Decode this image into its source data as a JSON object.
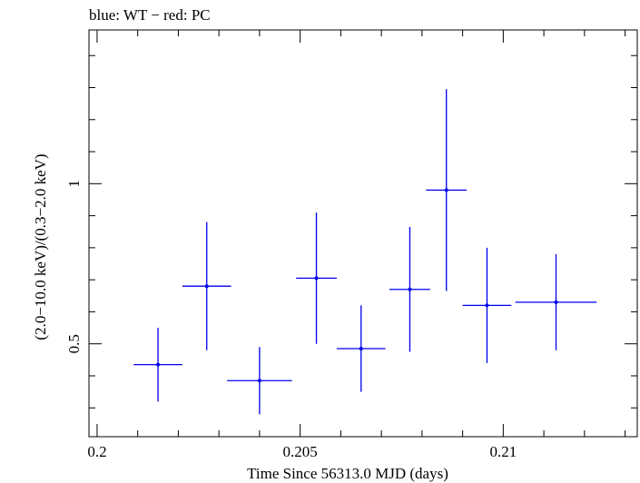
{
  "chart_data": {
    "type": "scatter",
    "title": "blue: WT − red: PC",
    "xlabel": "Time Since 56313.0 MJD (days)",
    "ylabel": "(2.0−10.0 keV)/(0.3−2.0 keV)",
    "xlim": [
      0.1998,
      0.2133
    ],
    "ylim": [
      0.21,
      1.48
    ],
    "x_major_ticks": [
      0.2,
      0.205,
      0.21
    ],
    "x_tick_labels": [
      "0.2",
      "0.205",
      "0.21"
    ],
    "y_major_ticks": [
      0.5,
      1.0
    ],
    "y_tick_labels": [
      "0.5",
      "1"
    ],
    "series": [
      {
        "color": "#0000ee",
        "points": [
          {
            "x": 0.2015,
            "xerr": 0.0006,
            "y": 0.435,
            "yerr_low": 0.115,
            "yerr_high": 0.115
          },
          {
            "x": 0.2027,
            "xerr": 0.0006,
            "y": 0.68,
            "yerr_low": 0.2,
            "yerr_high": 0.2
          },
          {
            "x": 0.204,
            "xerr": 0.0008,
            "y": 0.385,
            "yerr_low": 0.105,
            "yerr_high": 0.105
          },
          {
            "x": 0.2054,
            "xerr": 0.0005,
            "y": 0.705,
            "yerr_low": 0.205,
            "yerr_high": 0.205
          },
          {
            "x": 0.2065,
            "xerr": 0.0006,
            "y": 0.485,
            "yerr_low": 0.135,
            "yerr_high": 0.135
          },
          {
            "x": 0.2077,
            "xerr": 0.0005,
            "y": 0.67,
            "yerr_low": 0.195,
            "yerr_high": 0.195
          },
          {
            "x": 0.2086,
            "xerr": 0.0005,
            "y": 0.98,
            "yerr_low": 0.315,
            "yerr_high": 0.315
          },
          {
            "x": 0.2096,
            "xerr": 0.0006,
            "y": 0.62,
            "yerr_low": 0.18,
            "yerr_high": 0.18
          },
          {
            "x": 0.2113,
            "xerr": 0.001,
            "y": 0.63,
            "yerr_low": 0.15,
            "yerr_high": 0.15
          }
        ]
      }
    ],
    "grid": false
  }
}
